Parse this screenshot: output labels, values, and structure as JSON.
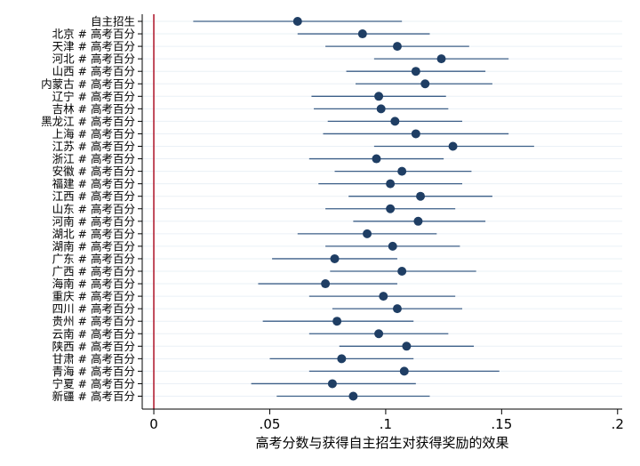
{
  "chart_data": {
    "type": "scatter",
    "subtype": "coefficient-plot",
    "title": "",
    "xlabel": "高考分数与获得自主招生对获得奖励的效果",
    "ylabel": "",
    "xlim": [
      -0.005,
      0.202
    ],
    "xticks": [
      0,
      0.05,
      0.1,
      0.15,
      0.2
    ],
    "xtick_labels": [
      "0",
      ".05",
      ".1",
      ".15",
      ".2"
    ],
    "reference_line": 0,
    "grid": "horizontal",
    "colors": {
      "marker": "#1f3e64",
      "interval": "#3c5f88",
      "reference_line": "#b22034",
      "grid": "#eaf0f6"
    },
    "categories": [
      "自主招生",
      "北京 # 高考百分",
      "天津 # 高考百分",
      "河北 # 高考百分",
      "山西 # 高考百分",
      "内蒙古 # 高考百分",
      "辽宁 # 高考百分",
      "吉林 # 高考百分",
      "黑龙江 # 高考百分",
      "上海 # 高考百分",
      "江苏 # 高考百分",
      "浙江 # 高考百分",
      "安徽 # 高考百分",
      "福建 # 高考百分",
      "江西 # 高考百分",
      "山东 # 高考百分",
      "河南 # 高考百分",
      "湖北 # 高考百分",
      "湖南 # 高考百分",
      "广东 # 高考百分",
      "广西 # 高考百分",
      "海南 # 高考百分",
      "重庆 # 高考百分",
      "四川 # 高考百分",
      "贵州 # 高考百分",
      "云南 # 高考百分",
      "陕西 # 高考百分",
      "甘肃 # 高考百分",
      "青海 # 高考百分",
      "宁夏 # 高考百分",
      "新疆 # 高考百分"
    ],
    "estimates": [
      0.062,
      0.09,
      0.105,
      0.124,
      0.113,
      0.117,
      0.097,
      0.098,
      0.104,
      0.113,
      0.129,
      0.096,
      0.107,
      0.102,
      0.115,
      0.102,
      0.114,
      0.092,
      0.103,
      0.078,
      0.107,
      0.074,
      0.099,
      0.105,
      0.079,
      0.097,
      0.109,
      0.081,
      0.108,
      0.077,
      0.086
    ],
    "ci_lower": [
      0.017,
      0.062,
      0.074,
      0.095,
      0.083,
      0.087,
      0.068,
      0.069,
      0.075,
      0.073,
      0.095,
      0.067,
      0.078,
      0.071,
      0.084,
      0.074,
      0.086,
      0.062,
      0.074,
      0.051,
      0.076,
      0.045,
      0.067,
      0.077,
      0.047,
      0.067,
      0.08,
      0.05,
      0.067,
      0.042,
      0.053
    ],
    "ci_upper": [
      0.107,
      0.119,
      0.136,
      0.153,
      0.143,
      0.146,
      0.126,
      0.127,
      0.133,
      0.153,
      0.164,
      0.125,
      0.137,
      0.133,
      0.146,
      0.13,
      0.143,
      0.122,
      0.132,
      0.105,
      0.139,
      0.105,
      0.13,
      0.133,
      0.112,
      0.127,
      0.138,
      0.112,
      0.149,
      0.113,
      0.119
    ]
  }
}
